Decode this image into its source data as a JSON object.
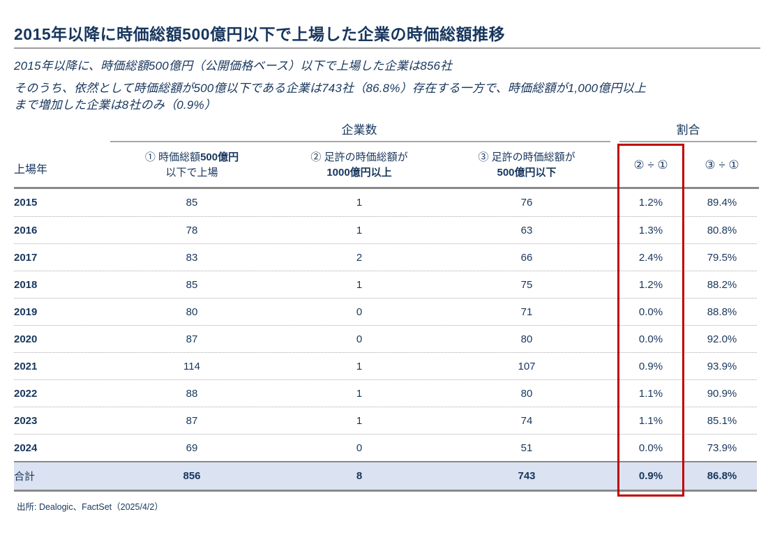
{
  "page": {
    "title": "2015年以降に時価総額500億円以下で上場した企業の時価総額推移",
    "subtitle_line1": "2015年以降に、時価総額500億円（公開価格ベース）以下で上場した企業は856社",
    "subtitle_line2": "そのうち、依然として時価総額が500億以下である企業は743社（86.8%）存在する一方で、時価総額が1,000億円以上",
    "subtitle_line3": "まで増加した企業は8社のみ（0.9%）",
    "source": "出所: Dealogic、FactSet（2025/4/2）"
  },
  "table": {
    "group_headers": {
      "companies": "企業数",
      "ratio": "割合"
    },
    "columns": {
      "year": "上場年",
      "col1_line1_prefix": "① 時価総額",
      "col1_line1_bold": "500億円",
      "col1_line2": "以下で上場",
      "col2_line1": "② 足許の時価総額が",
      "col2_line2": "1000億円以上",
      "col3_line1": "③ 足許の時価総額が",
      "col3_line2": "500億円以下",
      "col4": "② ÷ ①",
      "col5": "③ ÷ ①"
    },
    "rows": [
      {
        "year": "2015",
        "c1": "85",
        "c2": "1",
        "c3": "76",
        "r1": "1.2%",
        "r2": "89.4%"
      },
      {
        "year": "2016",
        "c1": "78",
        "c2": "1",
        "c3": "63",
        "r1": "1.3%",
        "r2": "80.8%"
      },
      {
        "year": "2017",
        "c1": "83",
        "c2": "2",
        "c3": "66",
        "r1": "2.4%",
        "r2": "79.5%"
      },
      {
        "year": "2018",
        "c1": "85",
        "c2": "1",
        "c3": "75",
        "r1": "1.2%",
        "r2": "88.2%"
      },
      {
        "year": "2019",
        "c1": "80",
        "c2": "0",
        "c3": "71",
        "r1": "0.0%",
        "r2": "88.8%"
      },
      {
        "year": "2020",
        "c1": "87",
        "c2": "0",
        "c3": "80",
        "r1": "0.0%",
        "r2": "92.0%"
      },
      {
        "year": "2021",
        "c1": "114",
        "c2": "1",
        "c3": "107",
        "r1": "0.9%",
        "r2": "93.9%"
      },
      {
        "year": "2022",
        "c1": "88",
        "c2": "1",
        "c3": "80",
        "r1": "1.1%",
        "r2": "90.9%"
      },
      {
        "year": "2023",
        "c1": "87",
        "c2": "1",
        "c3": "74",
        "r1": "1.1%",
        "r2": "85.1%"
      },
      {
        "year": "2024",
        "c1": "69",
        "c2": "0",
        "c3": "51",
        "r1": "0.0%",
        "r2": "73.9%"
      }
    ],
    "total": {
      "label": "合計",
      "c1": "856",
      "c2": "8",
      "c3": "743",
      "r1": "0.9%",
      "r2": "86.8%"
    }
  },
  "colors": {
    "text_navy": "#17365d",
    "line_gray": "#a6a6a6",
    "thick_line_gray": "#8a8a8a",
    "total_row_bg": "#dbe2f1",
    "highlight_red": "#c00000"
  }
}
